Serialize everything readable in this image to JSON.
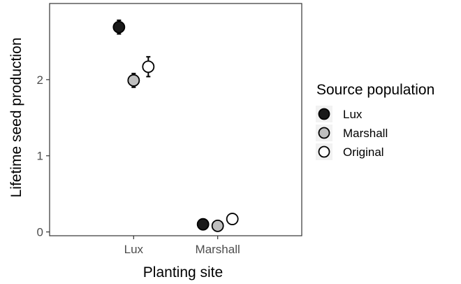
{
  "chart_data": {
    "type": "scatter",
    "xlabel": "Planting site",
    "ylabel": "Lifetime seed production",
    "categories": [
      "Lux",
      "Marshall"
    ],
    "ylim": [
      -0.05,
      3.0
    ],
    "yticks": [
      0,
      1,
      2
    ],
    "ytick_labels": [
      "0",
      "1",
      "2"
    ],
    "grid": false,
    "error_bars": true,
    "legend": {
      "title": "Source population",
      "placement": "right"
    },
    "series": [
      {
        "name": "Lux",
        "color": "#1a1a1a",
        "values": [
          2.69,
          0.1
        ],
        "errors": [
          0.09,
          0.03
        ]
      },
      {
        "name": "Marshall",
        "color": "#bfbfbf",
        "values": [
          1.99,
          0.08
        ],
        "errors": [
          0.09,
          0.03
        ]
      },
      {
        "name": "Original",
        "color": "#ffffff",
        "values": [
          2.17,
          0.17
        ],
        "errors": [
          0.13,
          0.03
        ]
      }
    ]
  }
}
